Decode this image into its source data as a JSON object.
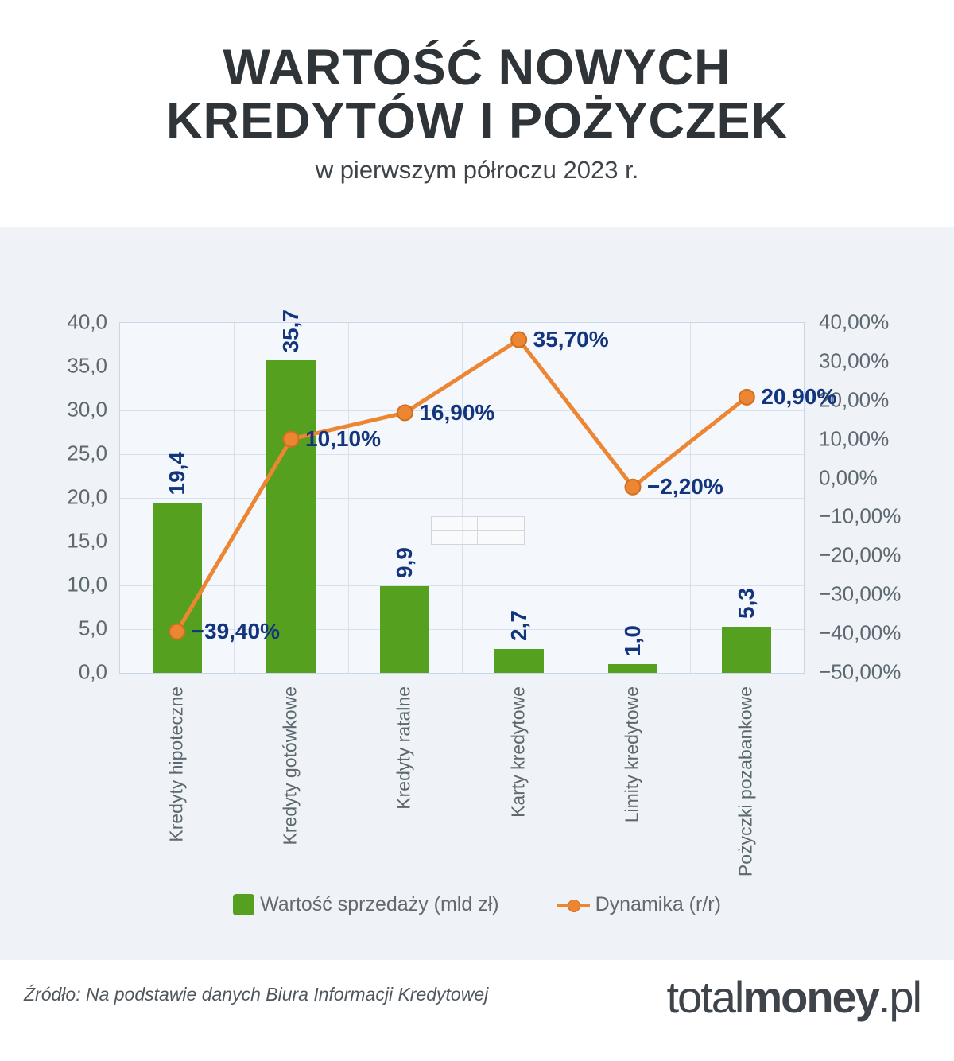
{
  "header": {
    "title_line1": "WARTOŚĆ NOWYCH",
    "title_line2": "KREDYTÓW I POŻYCZEK",
    "subtitle": "w pierwszym półroczu 2023 r."
  },
  "chart_data": {
    "type": "combo",
    "title": "WARTOŚĆ NOWYCH KREDYTÓW I POŻYCZEK",
    "subtitle": "w pierwszym półroczu 2023 r.",
    "categories": [
      "Kredyty hipoteczne",
      "Kredyty gotówkowe",
      "Kredyty ratalne",
      "Karty kredytowe",
      "Limity kredytowe",
      "Pożyczki pozabankowe"
    ],
    "series": [
      {
        "name": "Wartość sprzedaży (mld zł)",
        "type": "bar",
        "color": "#55A01E",
        "values": [
          19.4,
          35.7,
          9.9,
          2.7,
          1.0,
          5.3
        ],
        "value_labels": [
          "19,4",
          "35,7",
          "9,9",
          "2,7",
          "1,0",
          "5,3"
        ]
      },
      {
        "name": "Dynamika (r/r)",
        "type": "line",
        "color": "#EC8633",
        "marker_stroke": "#D06F1F",
        "values": [
          -39.4,
          10.1,
          16.9,
          35.7,
          -2.2,
          20.9
        ],
        "value_labels": [
          "−39,40%",
          "10,10%",
          "16,90%",
          "35,70%",
          "−2,20%",
          "20,90%"
        ]
      }
    ],
    "left_axis": {
      "min": 0,
      "max": 40,
      "tick_step": 5,
      "ticks": [
        "40,0",
        "35,0",
        "30,0",
        "25,0",
        "20,0",
        "15,0",
        "10,0",
        "5,0",
        "0,0"
      ]
    },
    "right_axis": {
      "min": -50,
      "max": 40,
      "tick_step": 10,
      "ticks": [
        "40,00%",
        "30,00%",
        "20,00%",
        "10,00%",
        "0,00%",
        "−10,00%",
        "−20,00%",
        "−30,00%",
        "−40,00%",
        "−50,00%"
      ]
    },
    "grid": true,
    "legend_position": "bottom",
    "colors": {
      "value_label": "#12357D",
      "axis_text": "#5E6870",
      "grid": "#D7E1EE",
      "plot_bg": "#F4F7FB",
      "band_bg": "#EFF3F8"
    }
  },
  "footer": {
    "source": "Źródło: Na podstawie danych Biura Informacji Kredytowej",
    "logo_total": "total",
    "logo_money": "money",
    "logo_pl": ".pl"
  }
}
